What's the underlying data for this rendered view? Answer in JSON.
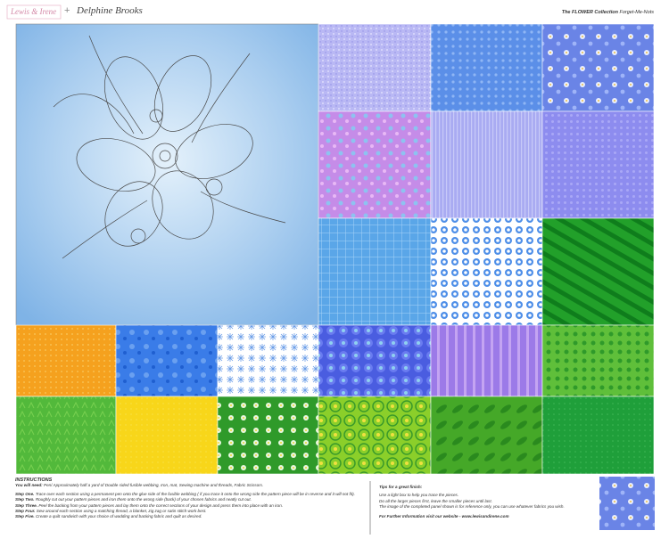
{
  "header": {
    "brand": "Lewis & Irene",
    "joiner": "+",
    "designer": "Delphine Brooks",
    "collection": "The FLOWER Collection",
    "range": "Forget-Me-Nots"
  },
  "instructions": {
    "heading": "INSTRUCTIONS",
    "need": {
      "label": "You will need:",
      "text": "Pen/ Approximately half a yard of Double sided fusible webbing, Iron, mat, Sewing machine and threads, Fabric Scissors."
    },
    "steps": [
      {
        "label": "Step One.",
        "text": "Trace over each section using a permanent pen onto the glue side of the fusible webbing ( if you trace it onto the wrong side the pattern piece will be in reverse and it will not fit)."
      },
      {
        "label": "Step Two.",
        "text": "Roughly cut out your pattern pieces and iron them onto the wrong side (back) of your chosen fabrics and neatly cut out."
      },
      {
        "label": "Step Three.",
        "text": "Peel the backing from your pattern pieces and lay them onto the correct sections of your design and press them into place with an iron."
      },
      {
        "label": "Step Four.",
        "text": "Sew around each section using a matching thread, a blanket, zig zag or satin stitch work best."
      },
      {
        "label": "Step Five.",
        "text": "Create a quilt sandwich with your choice of wadding and backing fabric and quilt as desired."
      }
    ]
  },
  "tips": {
    "heading": "Tips for a great finish:",
    "lines": [
      "Use a light box to help you trace the pieces.",
      "Do all the larger pieces first, leave the smaller pieces until last.",
      "The image of the completed panel shown is for reference only, you can use whatever fabrics you wish."
    ],
    "website": "For Further Information visit our website - www.lewisandirene.com"
  }
}
